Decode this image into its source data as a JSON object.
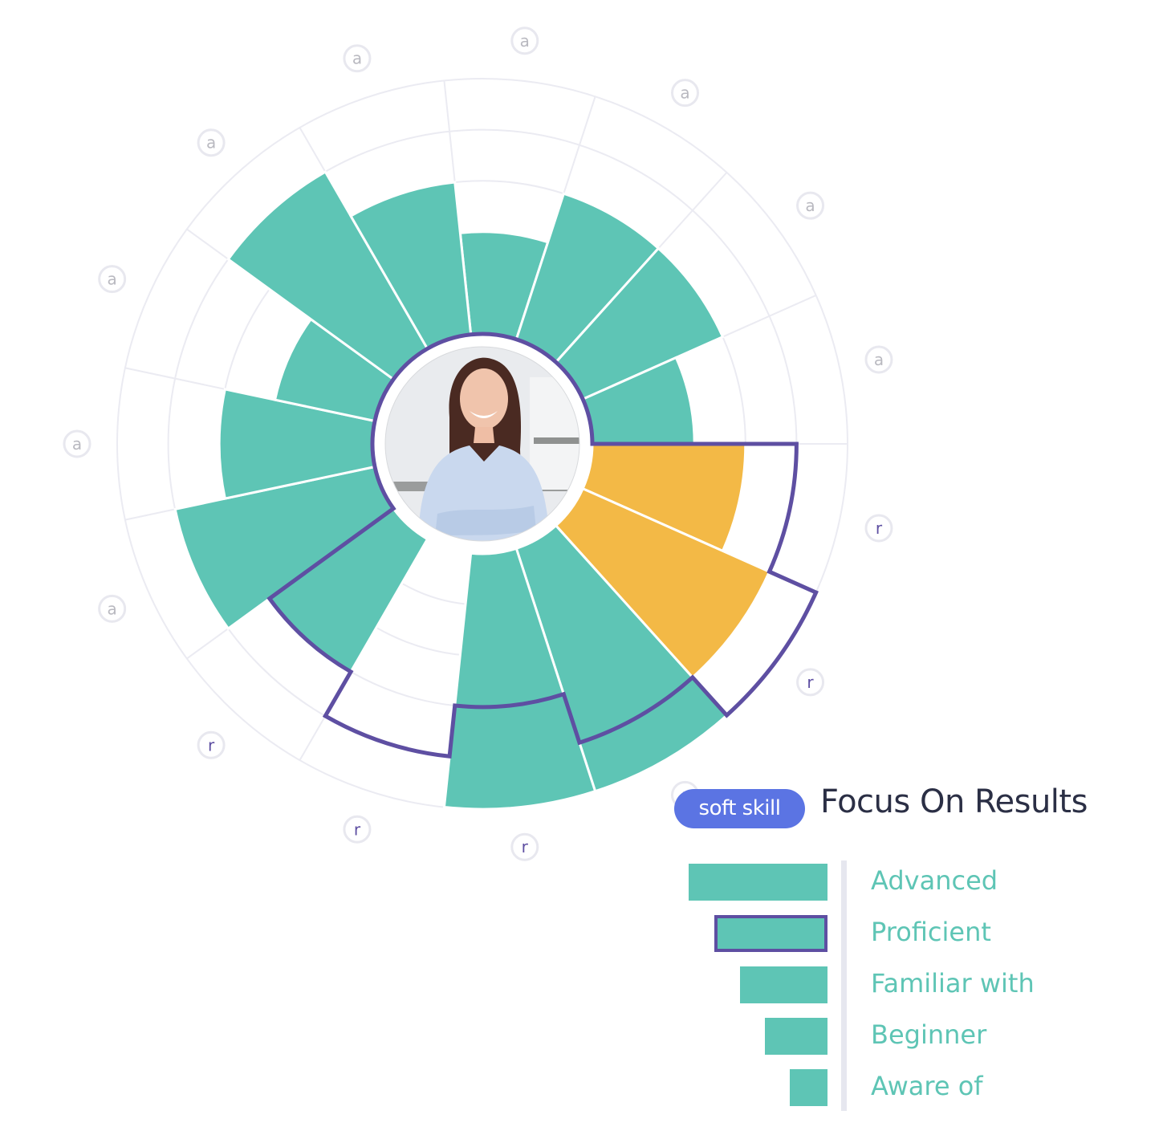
{
  "colors": {
    "achieved": "#5ec5b5",
    "below_target": "#f3b946",
    "target_outline": "#5e4fa2",
    "badge": "#5b74e3",
    "title": "#2b2f45",
    "grid": "#ebebf2"
  },
  "profile": {
    "photo": "portrait-photo"
  },
  "skill": {
    "badge": "soft skill",
    "title": "Focus On Results"
  },
  "legend": {
    "levels": [
      {
        "label": "Advanced",
        "level": 5,
        "target": false
      },
      {
        "label": "Proficient",
        "level": 4,
        "target": true
      },
      {
        "label": "Familiar with",
        "level": 3,
        "target": false
      },
      {
        "label": "Beginner",
        "level": 2,
        "target": false
      },
      {
        "label": "Aware of",
        "level": 1,
        "target": false
      }
    ]
  },
  "chart_data": {
    "type": "radial-bar",
    "max_level": 5,
    "segments": [
      {
        "label": "a",
        "value": 2,
        "target": 0
      },
      {
        "label": "a",
        "value": 3,
        "target": 0
      },
      {
        "label": "a",
        "value": 3,
        "target": 0
      },
      {
        "label": "a",
        "value": 2,
        "target": 0
      },
      {
        "label": "r",
        "value": 3,
        "target": 4
      },
      {
        "label": "r",
        "value": 4,
        "target": 5
      },
      {
        "label": "r",
        "value": 5,
        "target": 4
      },
      {
        "label": "r",
        "value": 5,
        "target": 3
      },
      {
        "label": "r",
        "value": 0,
        "target": 4
      },
      {
        "label": "r",
        "value": 3,
        "target": 3
      },
      {
        "label": "a",
        "value": 4,
        "target": 0
      },
      {
        "label": "a",
        "value": 3,
        "target": 0
      },
      {
        "label": "a",
        "value": 2,
        "target": 0
      },
      {
        "label": "a",
        "value": 4,
        "target": 0
      },
      {
        "label": "a",
        "value": 3,
        "target": 0
      }
    ]
  }
}
